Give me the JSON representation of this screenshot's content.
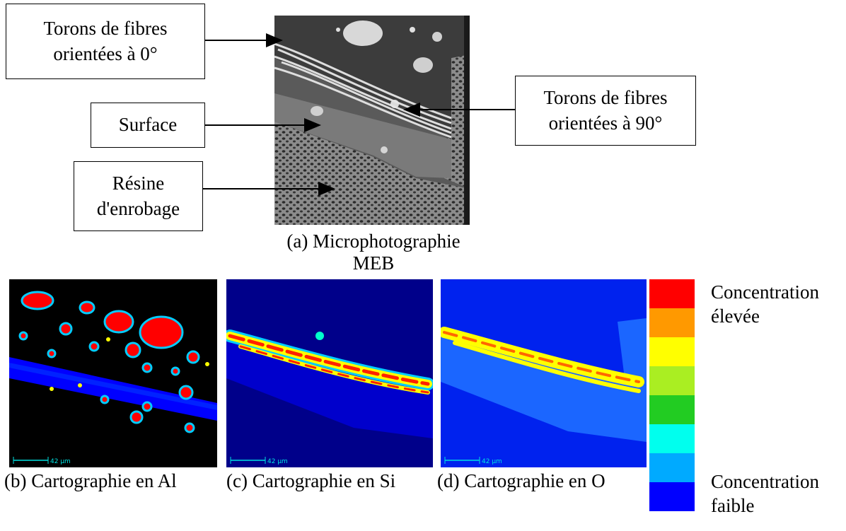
{
  "labels": {
    "fibres_0": "Torons de fibres\norientées à 0°",
    "surface": "Surface",
    "resine": "Résine\nd'enrobage",
    "fibres_90": "Torons de fibres\norientées à 90°"
  },
  "captions": {
    "a_line1": "(a) Microphotographie",
    "a_line2": "MEB",
    "b": "(b) Cartographie en Al",
    "c": "(c) Cartographie en Si",
    "d": "(d) Cartographie en O"
  },
  "scale_bar": "42 µm",
  "legend": {
    "high": "Concentration\nélevée",
    "low": "Concentration\nfaible",
    "colors": [
      "#ff0000",
      "#ff9900",
      "#ffff00",
      "#aaee22",
      "#22cc22",
      "#00ffee",
      "#00aaff",
      "#0000ff"
    ]
  },
  "colors": {
    "map_blue": "#0000ff",
    "map_background_al": "#000000",
    "map_background_si": "#00008a",
    "map_background_o": "#0022ee",
    "sem_grey": "#6e6e6e"
  }
}
